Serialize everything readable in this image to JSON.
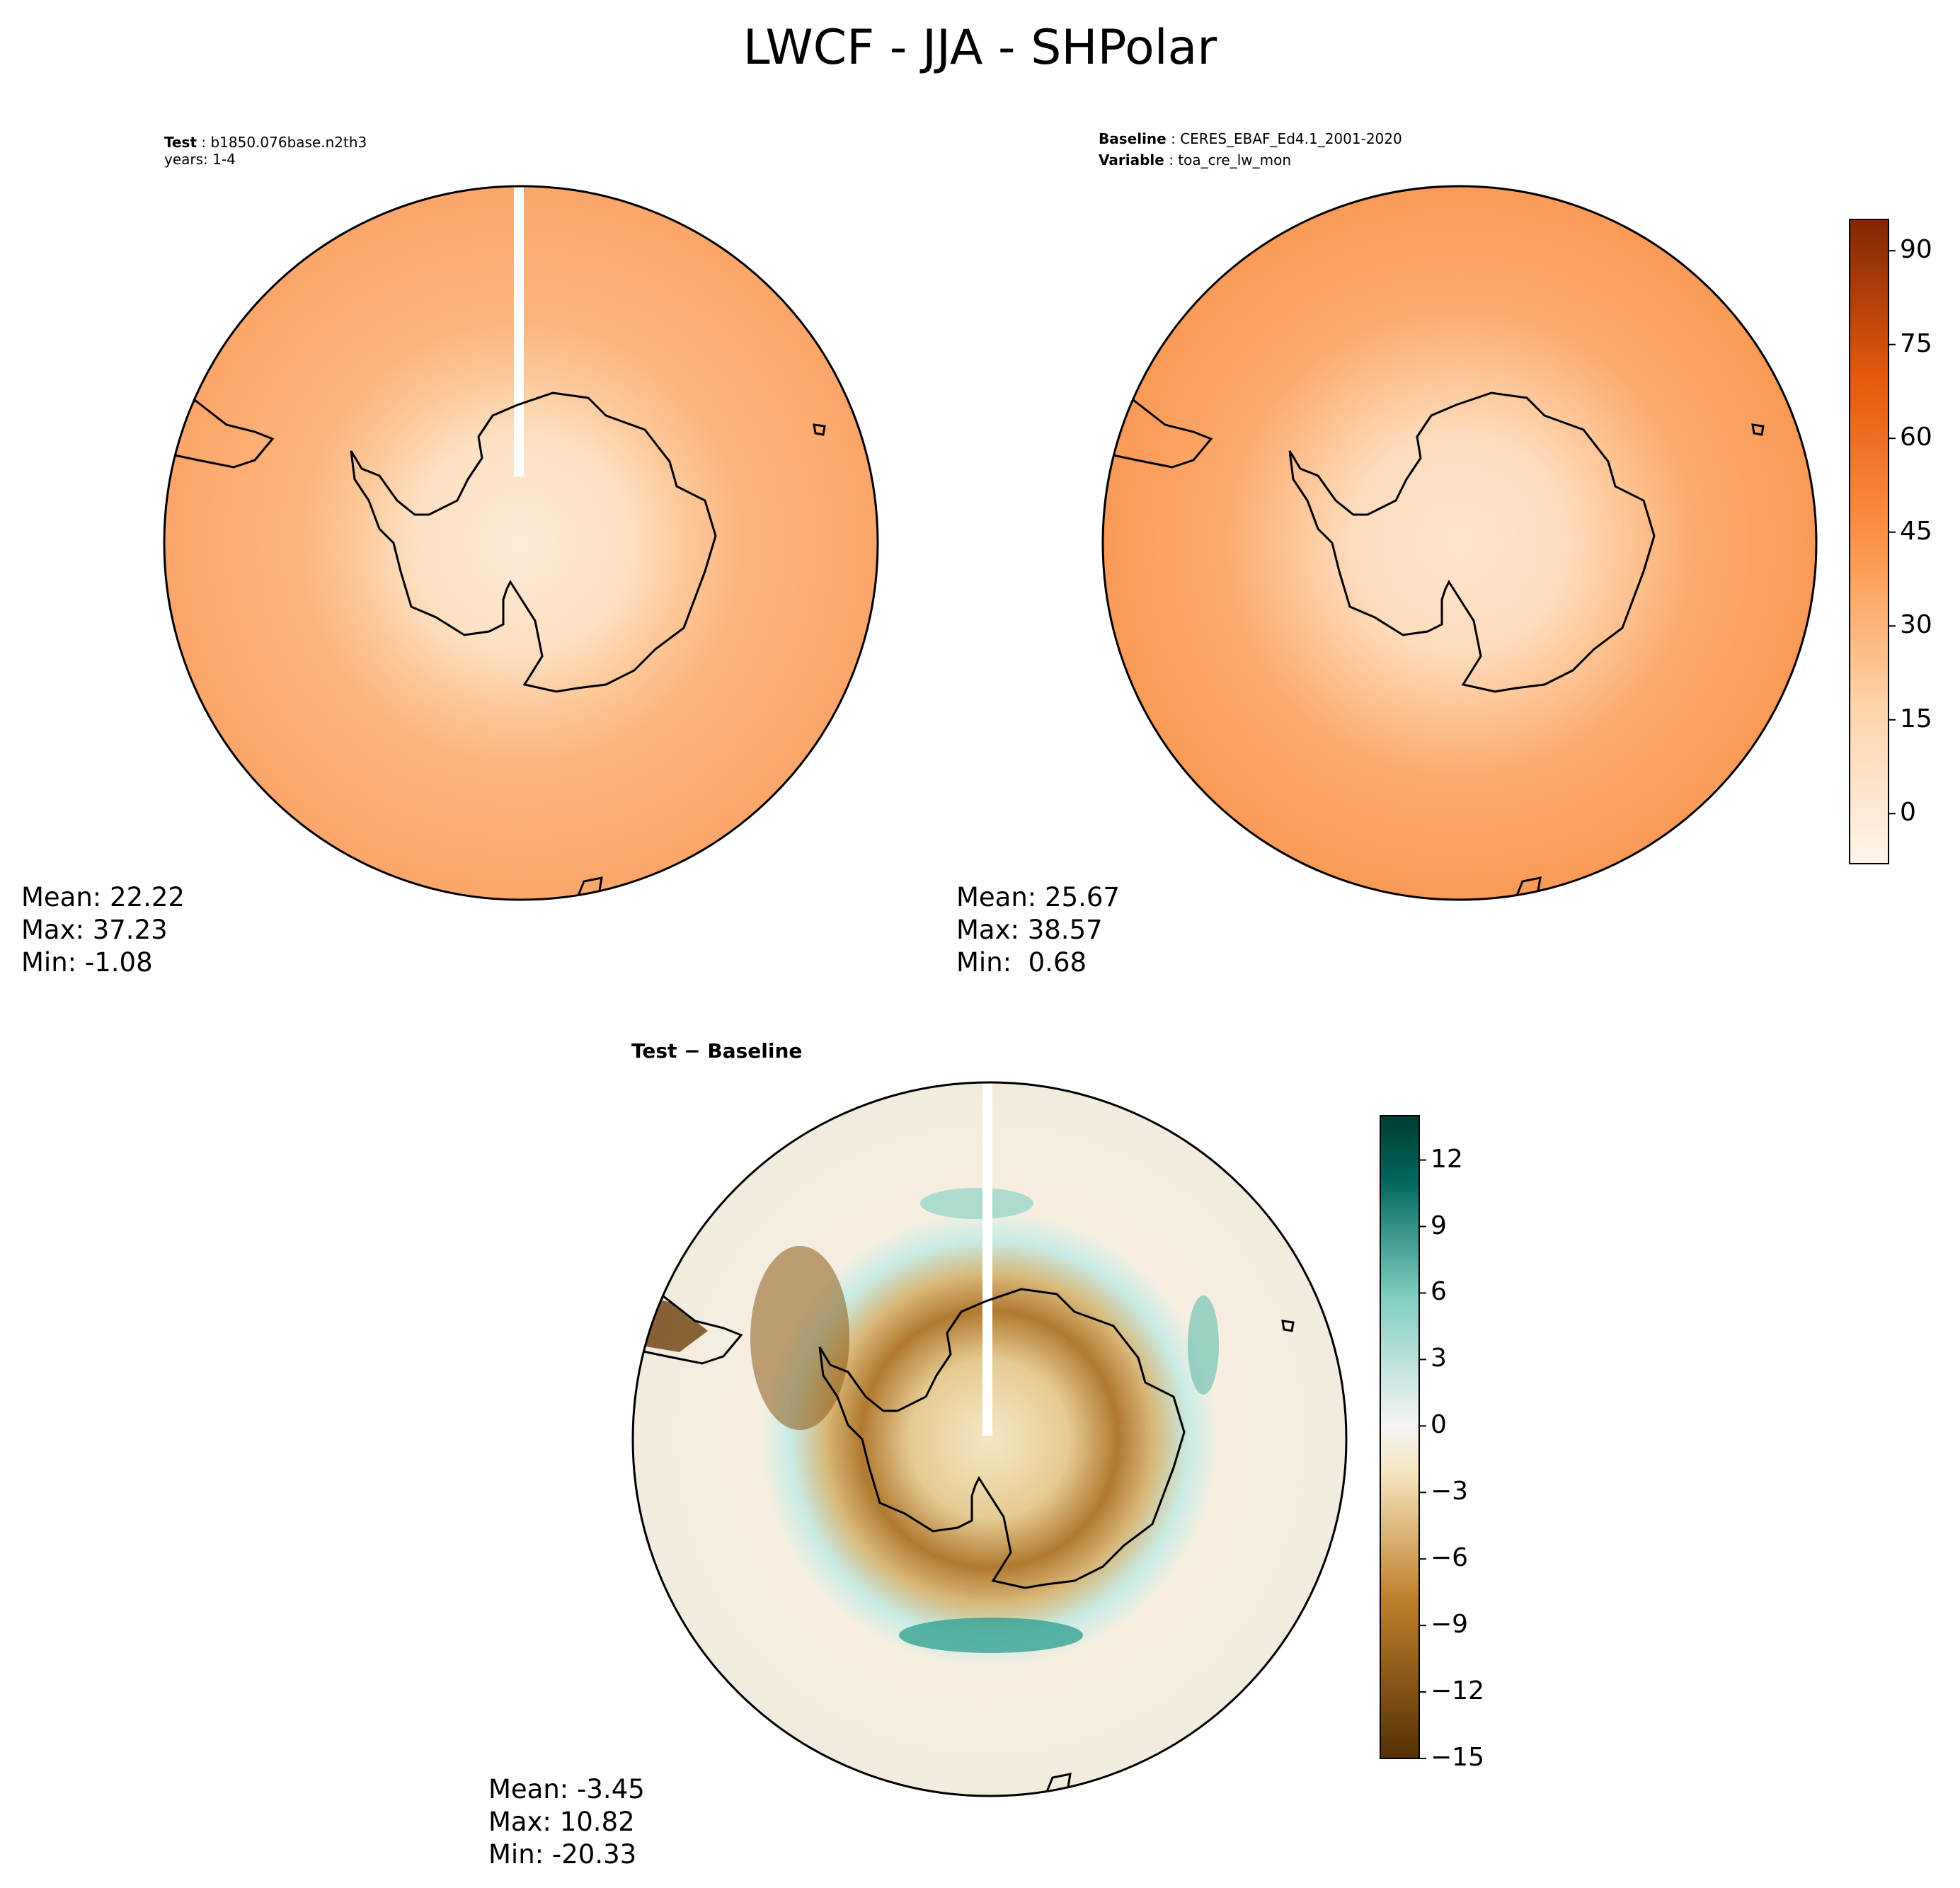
{
  "figure_title": "LWCF - JJA - SHPolar",
  "panels": {
    "test": {
      "label_key": "Test",
      "label_value": "b1850.076base.n2th3",
      "years_line": "years: 1-4",
      "mean_text": "Mean: 22.22",
      "max_text": "Max: 37.23",
      "min_text": "Min: -1.08"
    },
    "baseline": {
      "label_key": "Baseline",
      "label_value": "CERES_EBAF_Ed4.1_2001-2020",
      "variable_key": "Variable",
      "variable_value": "toa_cre_lw_mon",
      "mean_text": "Mean: 25.67",
      "max_text": "Max: 38.57",
      "min_text": "Min:  0.68"
    },
    "diff": {
      "title_a": "Test",
      "title_sep": " − ",
      "title_b": "Baseline",
      "mean_text": "Mean: -3.45",
      "max_text": "Max: 10.82",
      "min_text": "Min: -20.33"
    }
  },
  "colors": {
    "land_outline": "#000000",
    "seq_low": "#fff5eb",
    "seq_high": "#7f2704",
    "div_low": "#543005",
    "div_mid": "#f5f5f5",
    "div_high": "#003c30"
  },
  "chart_data": [
    {
      "type": "heatmap",
      "projection": "south-polar-stereographic",
      "panel": "test",
      "colorbar_range": [
        -8,
        95
      ],
      "colorbar_ticks": [
        "0",
        "15",
        "30",
        "45",
        "60",
        "75",
        "90"
      ],
      "stats": {
        "mean": 22.22,
        "max": 37.23,
        "min": -1.08
      }
    },
    {
      "type": "heatmap",
      "projection": "south-polar-stereographic",
      "panel": "baseline",
      "colorbar_range": [
        -8,
        95
      ],
      "colorbar_ticks": [
        "0",
        "15",
        "30",
        "45",
        "60",
        "75",
        "90"
      ],
      "stats": {
        "mean": 25.67,
        "max": 38.57,
        "min": 0.68
      }
    },
    {
      "type": "heatmap",
      "projection": "south-polar-stereographic",
      "panel": "diff",
      "colorbar_range": [
        -15,
        14
      ],
      "colorbar_ticks": [
        "12",
        "9",
        "6",
        "3",
        "0",
        "−3",
        "−6",
        "−9",
        "−12",
        "−15"
      ],
      "stats": {
        "mean": -3.45,
        "max": 10.82,
        "min": -20.33
      }
    }
  ]
}
